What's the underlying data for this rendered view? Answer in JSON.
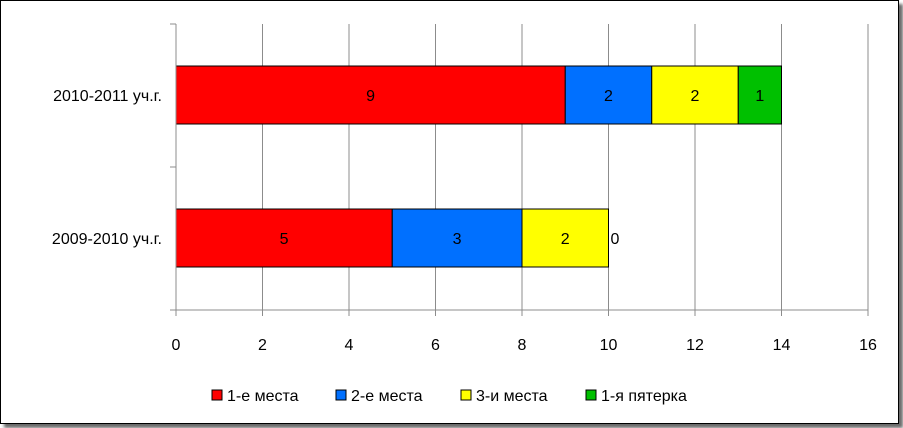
{
  "chart_data": {
    "type": "bar",
    "orientation": "horizontal",
    "stacked": true,
    "title": "",
    "xlabel": "",
    "ylabel": "",
    "categories": [
      "2010-2011 уч.г.",
      "2009-2010 уч.г."
    ],
    "series": [
      {
        "name": "1-е места",
        "values": [
          9,
          5
        ],
        "labels": [
          "9",
          "5"
        ],
        "color": "#ff0000"
      },
      {
        "name": "2-е места",
        "values": [
          2,
          3
        ],
        "labels": [
          "2",
          "3"
        ],
        "color": "#0070ff"
      },
      {
        "name": "3-и места",
        "values": [
          2,
          2
        ],
        "labels": [
          "2",
          "2"
        ],
        "color": "#ffff00"
      },
      {
        "name": "1-я пятерка",
        "values": [
          1,
          0
        ],
        "labels": [
          "1",
          "0"
        ],
        "color": "#00c000"
      }
    ],
    "xlim": [
      0,
      16
    ],
    "xticks": [
      "0",
      "2",
      "4",
      "6",
      "8",
      "10",
      "12",
      "14",
      "16"
    ],
    "grid": true,
    "legend_position": "bottom"
  }
}
